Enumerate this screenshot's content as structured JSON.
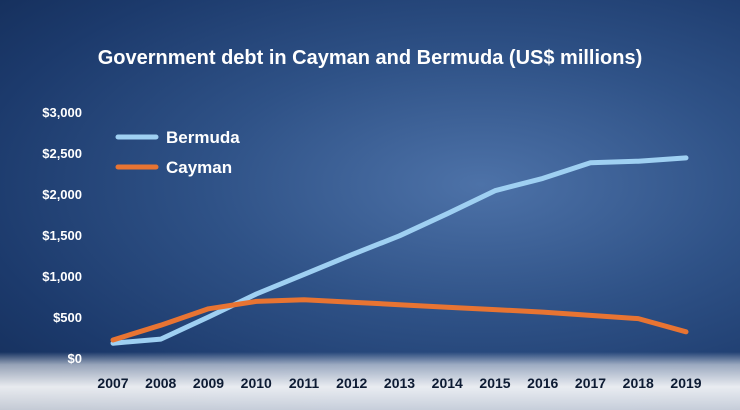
{
  "chart_data": {
    "type": "line",
    "title": "Government debt in Cayman and Bermuda (US$ millions)",
    "xlabel": "",
    "ylabel": "",
    "x": [
      "2007",
      "2008",
      "2009",
      "2010",
      "2011",
      "2012",
      "2013",
      "2014",
      "2015",
      "2016",
      "2017",
      "2018",
      "2019"
    ],
    "ylim": [
      0,
      3000
    ],
    "y_ticks": [
      "$0",
      "$500",
      "$1,000",
      "$1,500",
      "$2,000",
      "$2,500",
      "$3,000"
    ],
    "legend": "top-left",
    "grid": false,
    "series": [
      {
        "name": "Bermuda",
        "color": "#9fd0f2",
        "values": [
          180,
          230,
          500,
          780,
          1020,
          1260,
          1490,
          1760,
          2040,
          2190,
          2380,
          2400,
          2440
        ]
      },
      {
        "name": "Cayman",
        "color": "#e87432",
        "values": [
          220,
          400,
          600,
          690,
          710,
          680,
          650,
          620,
          590,
          560,
          520,
          480,
          320
        ]
      }
    ]
  }
}
